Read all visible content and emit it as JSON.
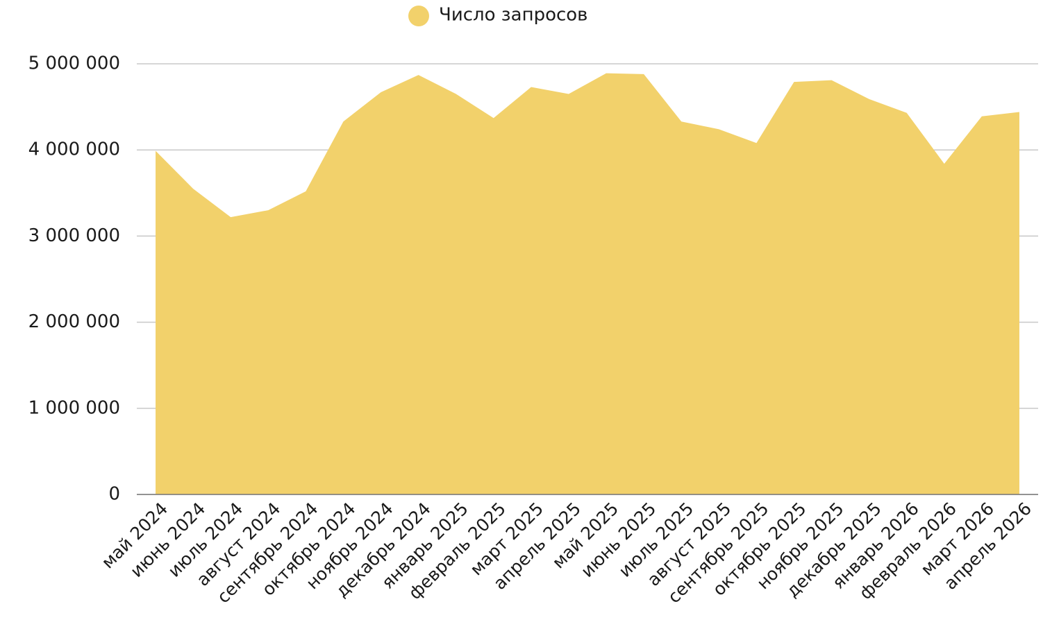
{
  "chart_data": {
    "type": "area",
    "categories": [
      "май 2024",
      "июнь 2024",
      "июль 2024",
      "август 2024",
      "сентябрь 2024",
      "октябрь 2024",
      "ноябрь 2024",
      "декабрь 2024",
      "январь 2025",
      "февраль 2025",
      "март 2025",
      "апрель 2025",
      "май 2025",
      "июнь 2025",
      "июль 2025",
      "август 2025",
      "сентябрь 2025",
      "октябрь 2025",
      "ноябрь 2025",
      "декабрь 2025",
      "январь 2026",
      "февраль 2026",
      "март 2026",
      "апрель 2026"
    ],
    "series": [
      {
        "name": "Число запросов",
        "color": "#f2d16b",
        "values": [
          3990000,
          3550000,
          3220000,
          3300000,
          3520000,
          4330000,
          4670000,
          4870000,
          4650000,
          4370000,
          4730000,
          4650000,
          4890000,
          4880000,
          4330000,
          4240000,
          4080000,
          4790000,
          4810000,
          4590000,
          4430000,
          3840000,
          4390000,
          4440000
        ]
      }
    ],
    "ylim": [
      0,
      5000000
    ],
    "yticks": [
      0,
      {
        "value": 1000000,
        "label": "1 000 000"
      },
      {
        "value": 2000000,
        "label": "2 000 000"
      },
      {
        "value": 3000000,
        "label": "3 000 000"
      },
      {
        "value": 4000000,
        "label": "4 000 000"
      },
      {
        "value": 5000000,
        "label": "5 000 000"
      }
    ],
    "grid": true,
    "legend": "top"
  }
}
